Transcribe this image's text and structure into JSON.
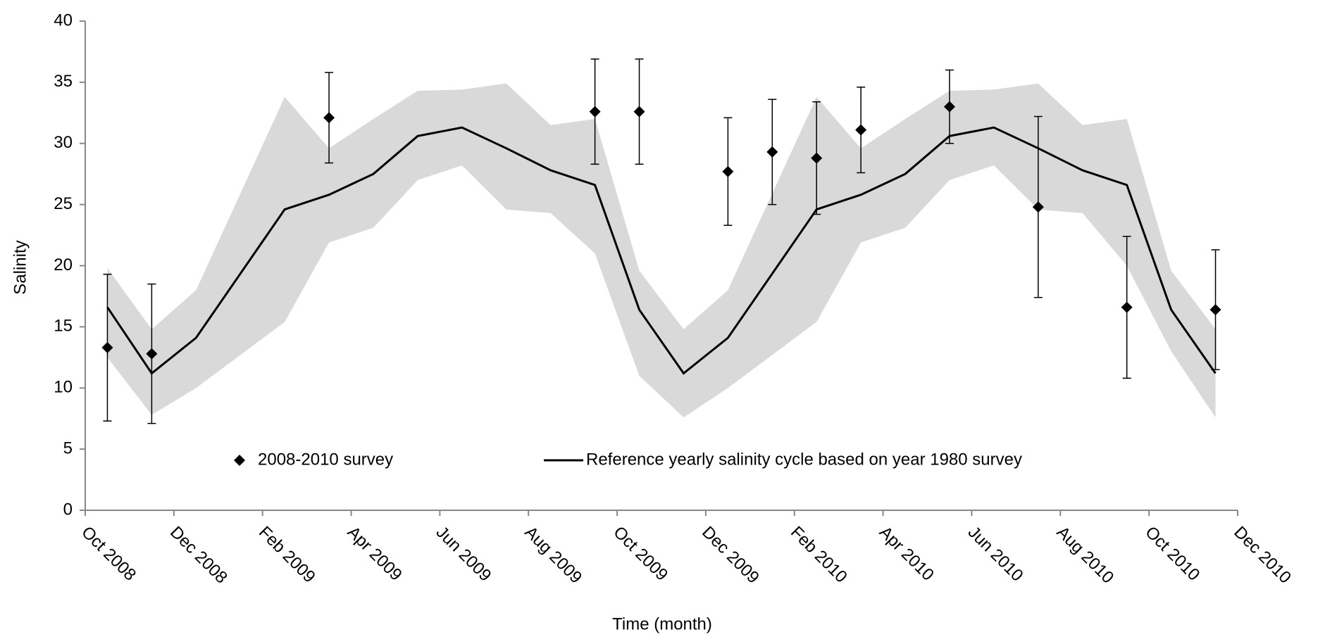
{
  "chart_data": {
    "type": "line",
    "xlabel": "Time (month)",
    "ylabel": "Salinity",
    "ylim": [
      0,
      40
    ],
    "yticks": [
      0,
      5,
      10,
      15,
      20,
      25,
      30,
      35,
      40
    ],
    "xlim": [
      "2008-10",
      "2010-12"
    ],
    "xticks": [
      {
        "value": "2008-10",
        "label": "Oct 2008"
      },
      {
        "value": "2008-12",
        "label": "Dec 2008"
      },
      {
        "value": "2009-02",
        "label": "Feb 2009"
      },
      {
        "value": "2009-04",
        "label": "Apr 2009"
      },
      {
        "value": "2009-06",
        "label": "Jun 2009"
      },
      {
        "value": "2009-08",
        "label": "Aug 2009"
      },
      {
        "value": "2009-10",
        "label": "Oct 2009"
      },
      {
        "value": "2009-12",
        "label": "Dec 2009"
      },
      {
        "value": "2010-02",
        "label": "Feb 2010"
      },
      {
        "value": "2010-04",
        "label": "Apr 2010"
      },
      {
        "value": "2010-06",
        "label": "Jun 2010"
      },
      {
        "value": "2010-08",
        "label": "Aug 2010"
      },
      {
        "value": "2010-10",
        "label": "Oct 2010"
      },
      {
        "value": "2010-12",
        "label": "Dec 2010"
      }
    ],
    "series": [
      {
        "name": "2008-2010 survey",
        "kind": "scatter",
        "marker": "diamond",
        "color": "#000000",
        "x": [
          "2008-10",
          "2008-11",
          "2009-03",
          "2009-09",
          "2009-10",
          "2009-12",
          "2010-01",
          "2010-02",
          "2010-03",
          "2010-05",
          "2010-07",
          "2010-09",
          "2010-11"
        ],
        "values": [
          13.3,
          12.8,
          32.1,
          32.6,
          32.6,
          27.7,
          29.3,
          28.8,
          31.1,
          33.0,
          24.8,
          16.6,
          16.4
        ],
        "errors": [
          6.0,
          5.7,
          3.7,
          4.3,
          4.3,
          4.4,
          4.3,
          4.6,
          3.5,
          3.0,
          7.4,
          5.8,
          4.9
        ]
      },
      {
        "name": "Reference yearly salinity cycle based on year 1980 survey",
        "kind": "line",
        "color": "#000000",
        "band_color": "#d9d9d9",
        "x": [
          "2008-10",
          "2008-11",
          "2008-12",
          "2009-02",
          "2009-03",
          "2009-04",
          "2009-05",
          "2009-06",
          "2009-07",
          "2009-08",
          "2009-09",
          "2009-10",
          "2009-11",
          "2009-12",
          "2010-02",
          "2010-03",
          "2010-04",
          "2010-05",
          "2010-06",
          "2010-07",
          "2010-08",
          "2010-09",
          "2010-10",
          "2010-11"
        ],
        "values": [
          16.6,
          11.2,
          14.1,
          24.6,
          25.8,
          27.5,
          30.6,
          31.3,
          29.6,
          27.8,
          26.6,
          16.4,
          11.2,
          14.1,
          24.6,
          25.8,
          27.5,
          30.6,
          31.3,
          29.6,
          27.8,
          26.6,
          16.4,
          11.2
        ],
        "band_upper": [
          19.8,
          14.8,
          18.0,
          33.8,
          29.6,
          32.0,
          34.3,
          34.4,
          34.9,
          31.5,
          32.0,
          19.6,
          14.8,
          18.0,
          33.8,
          29.6,
          32.0,
          34.3,
          34.4,
          34.9,
          31.5,
          32.0,
          19.6,
          14.8
        ],
        "band_lower": [
          12.5,
          7.8,
          10.0,
          15.4,
          21.9,
          23.1,
          27.0,
          28.2,
          24.6,
          24.3,
          21.0,
          11.0,
          7.6,
          10.0,
          15.4,
          21.9,
          23.1,
          27.0,
          28.2,
          24.6,
          24.3,
          20.0,
          13.0,
          7.6
        ]
      }
    ]
  }
}
